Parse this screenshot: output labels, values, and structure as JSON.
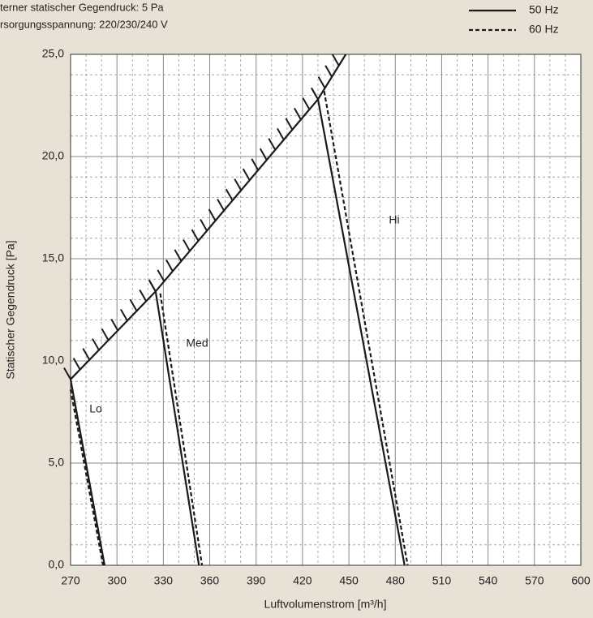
{
  "chart_data": {
    "type": "line",
    "notes": [
      "terner statischer Gegendruck: 5 Pa",
      "rsorgungsspannung: 220/230/240 V"
    ],
    "x_label": "Luftvolumenstrom [m³/h]",
    "y_label": "Statischer Gegendruck [Pa]",
    "xlim": [
      270,
      600
    ],
    "ylim": [
      0,
      25
    ],
    "xticks": [
      270,
      300,
      330,
      360,
      390,
      420,
      450,
      480,
      510,
      540,
      570,
      600
    ],
    "yticks": [
      {
        "value": 0,
        "label": "0,0"
      },
      {
        "value": 5,
        "label": "5,0"
      },
      {
        "value": 10,
        "label": "10,0"
      },
      {
        "value": 15,
        "label": "15,0"
      },
      {
        "value": 20,
        "label": "20,0"
      },
      {
        "value": 25,
        "label": "25,0"
      }
    ],
    "grid": true,
    "minor_divisions": {
      "x": 3,
      "y": 5
    },
    "legend": [
      {
        "name": "50 Hz",
        "style": "solid"
      },
      {
        "name": "60 Hz",
        "style": "dashed"
      }
    ],
    "annotations": [
      "Lo",
      "Med",
      "Hi"
    ],
    "color": "#1a1a1a",
    "series": [
      {
        "style": "solid",
        "hatch": true,
        "x": [
          270,
          325,
          430,
          448
        ],
        "values": [
          9.1,
          13.4,
          22.8,
          25
        ]
      },
      {
        "style": "solid",
        "x": [
          270,
          292
        ],
        "values": [
          9.1,
          0
        ]
      },
      {
        "style": "dashed",
        "x": [
          270,
          291
        ],
        "values": [
          8.6,
          0
        ]
      },
      {
        "style": "solid",
        "x": [
          325,
          353
        ],
        "values": [
          13.4,
          0
        ]
      },
      {
        "style": "dashed",
        "x": [
          328,
          355
        ],
        "values": [
          13.3,
          0
        ]
      },
      {
        "style": "solid",
        "x": [
          430,
          486
        ],
        "values": [
          22.8,
          0
        ]
      },
      {
        "style": "dashed",
        "x": [
          434,
          488
        ],
        "values": [
          23.2,
          0
        ]
      }
    ]
  }
}
